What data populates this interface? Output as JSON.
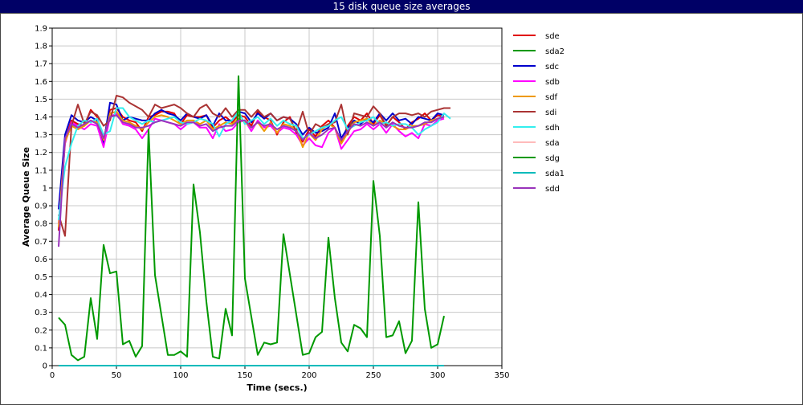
{
  "window": {
    "title": "15 disk queue size averages"
  },
  "chart_data": {
    "type": "line",
    "title": "15 disk queue size averages",
    "xlabel": "Time (secs.)",
    "ylabel": "Average Queue Size",
    "xlim": [
      0,
      350
    ],
    "ylim": [
      0,
      1.9
    ],
    "x_ticks": [
      0,
      50,
      100,
      150,
      200,
      250,
      300,
      350
    ],
    "y_ticks": [
      0,
      0.1,
      0.2,
      0.3,
      0.4,
      0.5,
      0.6,
      0.7,
      0.8,
      0.9,
      1,
      1.1,
      1.2,
      1.3,
      1.4,
      1.5,
      1.6,
      1.7,
      1.8,
      1.9
    ],
    "x_tick_labels": [
      "0",
      "50",
      "100",
      "150",
      "200",
      "250",
      "300",
      "350"
    ],
    "y_tick_labels": [
      "0",
      "0.1",
      "0.2",
      "0.3",
      "0.4",
      "0.5",
      "0.6",
      "0.7",
      "0.8",
      "0.9",
      "1",
      "1.1",
      "1.2",
      "1.3",
      "1.4",
      "1.5",
      "1.6",
      "1.7",
      "1.8",
      "1.9"
    ],
    "grid": true,
    "legend_position": "right",
    "series": [
      {
        "name": "sde",
        "color": "#e00000",
        "x": [
          5,
          10,
          15,
          20,
          25,
          30,
          35,
          40,
          45,
          50,
          55,
          60,
          65,
          70,
          75,
          80,
          85,
          90,
          95,
          100,
          105,
          110,
          115,
          120,
          125,
          130,
          135,
          140,
          145,
          150,
          155,
          160,
          165,
          170,
          175,
          180,
          185,
          190,
          195,
          200,
          205,
          210,
          215,
          220,
          225,
          230,
          235,
          240,
          245,
          250,
          255,
          260,
          265,
          270,
          275,
          280,
          285,
          290,
          295,
          300,
          305
        ],
        "y": [
          0.76,
          1.27,
          1.38,
          1.36,
          1.35,
          1.44,
          1.4,
          1.27,
          1.44,
          1.45,
          1.4,
          1.38,
          1.37,
          1.32,
          1.4,
          1.41,
          1.43,
          1.43,
          1.42,
          1.36,
          1.41,
          1.4,
          1.4,
          1.41,
          1.34,
          1.38,
          1.4,
          1.37,
          1.41,
          1.4,
          1.35,
          1.43,
          1.4,
          1.38,
          1.3,
          1.37,
          1.4,
          1.31,
          1.26,
          1.33,
          1.29,
          1.35,
          1.38,
          1.34,
          1.26,
          1.35,
          1.4,
          1.38,
          1.42,
          1.36,
          1.41,
          1.35,
          1.4,
          1.37,
          1.33,
          1.37,
          1.39,
          1.42,
          1.38,
          1.41,
          1.4
        ]
      },
      {
        "name": "sda2",
        "color": "#009900",
        "x": [
          5,
          305
        ],
        "y": [
          0,
          0
        ]
      },
      {
        "name": "sdc",
        "color": "#0000cc",
        "x": [
          5,
          10,
          15,
          20,
          25,
          30,
          35,
          40,
          45,
          50,
          55,
          60,
          65,
          70,
          75,
          80,
          85,
          90,
          95,
          100,
          105,
          110,
          115,
          120,
          125,
          130,
          135,
          140,
          145,
          150,
          155,
          160,
          165,
          170,
          175,
          180,
          185,
          190,
          195,
          200,
          205,
          210,
          215,
          220,
          225,
          230,
          235,
          240,
          245,
          250,
          255,
          260,
          265,
          270,
          275,
          280,
          285,
          290,
          295,
          300,
          305
        ],
        "y": [
          0.88,
          1.3,
          1.41,
          1.38,
          1.37,
          1.4,
          1.38,
          1.25,
          1.48,
          1.47,
          1.38,
          1.4,
          1.39,
          1.38,
          1.38,
          1.42,
          1.44,
          1.42,
          1.41,
          1.38,
          1.42,
          1.4,
          1.39,
          1.41,
          1.35,
          1.42,
          1.38,
          1.38,
          1.43,
          1.42,
          1.37,
          1.42,
          1.39,
          1.42,
          1.38,
          1.4,
          1.39,
          1.36,
          1.3,
          1.34,
          1.31,
          1.32,
          1.34,
          1.42,
          1.28,
          1.34,
          1.38,
          1.36,
          1.39,
          1.37,
          1.42,
          1.38,
          1.42,
          1.38,
          1.39,
          1.36,
          1.4,
          1.39,
          1.38,
          1.42,
          1.41
        ]
      },
      {
        "name": "sdb",
        "color": "#ff00ff",
        "x": [
          5,
          10,
          15,
          20,
          25,
          30,
          35,
          40,
          45,
          50,
          55,
          60,
          65,
          70,
          75,
          80,
          85,
          90,
          95,
          100,
          105,
          110,
          115,
          120,
          125,
          130,
          135,
          140,
          145,
          150,
          155,
          160,
          165,
          170,
          175,
          180,
          185,
          190,
          195,
          200,
          205,
          210,
          215,
          220,
          225,
          230,
          235,
          240,
          245,
          250,
          255,
          260,
          265,
          270,
          275,
          280,
          285,
          290,
          295,
          300,
          305
        ],
        "y": [
          0.8,
          1.25,
          1.37,
          1.35,
          1.33,
          1.36,
          1.35,
          1.23,
          1.4,
          1.42,
          1.36,
          1.35,
          1.33,
          1.28,
          1.33,
          1.39,
          1.38,
          1.37,
          1.36,
          1.33,
          1.36,
          1.37,
          1.34,
          1.34,
          1.28,
          1.36,
          1.32,
          1.33,
          1.37,
          1.38,
          1.32,
          1.38,
          1.34,
          1.35,
          1.31,
          1.34,
          1.33,
          1.3,
          1.24,
          1.28,
          1.24,
          1.23,
          1.31,
          1.34,
          1.22,
          1.27,
          1.32,
          1.33,
          1.36,
          1.33,
          1.36,
          1.31,
          1.36,
          1.32,
          1.29,
          1.31,
          1.28,
          1.36,
          1.35,
          1.38,
          1.39
        ]
      },
      {
        "name": "sdf",
        "color": "#ee9900",
        "x": [
          5,
          10,
          15,
          20,
          25,
          30,
          35,
          40,
          45,
          50,
          55,
          60,
          65,
          70,
          75,
          80,
          85,
          90,
          95,
          100,
          105,
          110,
          115,
          120,
          125,
          130,
          135,
          140,
          145,
          150,
          155,
          160,
          165,
          170,
          175,
          180,
          185,
          190,
          195,
          200,
          205,
          210,
          215,
          220,
          225,
          230,
          235,
          240,
          245,
          250,
          255,
          260,
          265,
          270,
          275,
          280,
          285,
          290,
          295,
          300,
          305
        ],
        "y": [
          0.78,
          1.26,
          1.35,
          1.33,
          1.35,
          1.38,
          1.37,
          1.27,
          1.42,
          1.43,
          1.38,
          1.37,
          1.35,
          1.33,
          1.37,
          1.4,
          1.41,
          1.4,
          1.38,
          1.36,
          1.38,
          1.38,
          1.36,
          1.38,
          1.33,
          1.35,
          1.37,
          1.36,
          1.39,
          1.37,
          1.34,
          1.37,
          1.32,
          1.37,
          1.31,
          1.36,
          1.35,
          1.33,
          1.23,
          1.31,
          1.27,
          1.33,
          1.36,
          1.34,
          1.25,
          1.31,
          1.37,
          1.38,
          1.39,
          1.35,
          1.38,
          1.36,
          1.35,
          1.33,
          1.33,
          1.35,
          1.35,
          1.36,
          1.38,
          1.39,
          1.4
        ]
      },
      {
        "name": "sdi",
        "color": "#aa3333",
        "x": [
          5,
          10,
          15,
          20,
          25,
          30,
          35,
          40,
          45,
          50,
          55,
          60,
          65,
          70,
          75,
          80,
          85,
          90,
          95,
          100,
          105,
          110,
          115,
          120,
          125,
          130,
          135,
          140,
          145,
          150,
          155,
          160,
          165,
          170,
          175,
          180,
          185,
          190,
          195,
          200,
          205,
          210,
          215,
          220,
          225,
          230,
          235,
          240,
          245,
          250,
          255,
          260,
          265,
          270,
          275,
          280,
          285,
          290,
          295,
          300,
          305,
          310
        ],
        "y": [
          0.85,
          0.73,
          1.35,
          1.47,
          1.36,
          1.43,
          1.41,
          1.35,
          1.38,
          1.52,
          1.51,
          1.48,
          1.46,
          1.44,
          1.4,
          1.47,
          1.45,
          1.46,
          1.47,
          1.45,
          1.42,
          1.4,
          1.45,
          1.47,
          1.42,
          1.4,
          1.45,
          1.4,
          1.44,
          1.44,
          1.4,
          1.44,
          1.4,
          1.42,
          1.38,
          1.4,
          1.39,
          1.32,
          1.43,
          1.3,
          1.36,
          1.34,
          1.36,
          1.37,
          1.47,
          1.3,
          1.42,
          1.41,
          1.4,
          1.46,
          1.42,
          1.35,
          1.4,
          1.42,
          1.42,
          1.41,
          1.42,
          1.4,
          1.43,
          1.44,
          1.45,
          1.45
        ]
      },
      {
        "name": "sdh",
        "color": "#33eeee",
        "x": [
          5,
          10,
          15,
          20,
          25,
          30,
          35,
          40,
          45,
          50,
          55,
          60,
          65,
          70,
          75,
          80,
          85,
          90,
          95,
          100,
          105,
          110,
          115,
          120,
          125,
          130,
          135,
          140,
          145,
          150,
          155,
          160,
          165,
          170,
          175,
          180,
          185,
          190,
          195,
          200,
          205,
          210,
          215,
          220,
          225,
          230,
          235,
          240,
          245,
          250,
          255,
          260,
          265,
          270,
          275,
          280,
          285,
          290,
          295,
          300,
          305,
          310
        ],
        "y": [
          0.82,
          1.12,
          1.25,
          1.35,
          1.38,
          1.37,
          1.39,
          1.3,
          1.32,
          1.45,
          1.45,
          1.4,
          1.38,
          1.36,
          1.38,
          1.37,
          1.38,
          1.39,
          1.4,
          1.37,
          1.36,
          1.37,
          1.39,
          1.38,
          1.36,
          1.29,
          1.36,
          1.38,
          1.43,
          1.36,
          1.38,
          1.4,
          1.36,
          1.39,
          1.35,
          1.38,
          1.36,
          1.35,
          1.28,
          1.3,
          1.32,
          1.34,
          1.35,
          1.38,
          1.4,
          1.33,
          1.35,
          1.37,
          1.38,
          1.4,
          1.36,
          1.37,
          1.35,
          1.36,
          1.36,
          1.34,
          1.3,
          1.33,
          1.35,
          1.37,
          1.42,
          1.39
        ]
      },
      {
        "name": "sda",
        "color": "#ffbbbb",
        "x": [
          5,
          305
        ],
        "y": [
          0,
          0
        ]
      },
      {
        "name": "sdg",
        "color": "#009900",
        "x": [
          5,
          10,
          15,
          20,
          25,
          30,
          35,
          40,
          45,
          50,
          55,
          60,
          65,
          70,
          75,
          80,
          90,
          95,
          100,
          105,
          110,
          115,
          120,
          125,
          130,
          135,
          140,
          145,
          150,
          160,
          165,
          170,
          175,
          180,
          195,
          200,
          205,
          210,
          215,
          220,
          225,
          230,
          235,
          240,
          245,
          250,
          255,
          260,
          265,
          270,
          275,
          280,
          285,
          290,
          295,
          300,
          305
        ],
        "y": [
          0.27,
          0.23,
          0.06,
          0.03,
          0.05,
          0.38,
          0.15,
          0.68,
          0.52,
          0.53,
          0.12,
          0.14,
          0.05,
          0.11,
          1.33,
          0.51,
          0.06,
          0.06,
          0.08,
          0.05,
          1.02,
          0.75,
          0.36,
          0.05,
          0.04,
          0.32,
          0.17,
          1.63,
          0.49,
          0.06,
          0.13,
          0.12,
          0.13,
          0.74,
          0.06,
          0.07,
          0.16,
          0.19,
          0.72,
          0.38,
          0.13,
          0.08,
          0.23,
          0.21,
          0.16,
          1.04,
          0.73,
          0.16,
          0.17,
          0.25,
          0.07,
          0.14,
          0.92,
          0.32,
          0.1,
          0.12,
          0.28
        ]
      },
      {
        "name": "sda1",
        "color": "#00bbbb",
        "x": [
          5,
          305
        ],
        "y": [
          0,
          0
        ]
      },
      {
        "name": "sdd",
        "color": "#9933bb",
        "x": [
          5,
          10,
          15,
          20,
          25,
          30,
          35,
          40,
          45,
          50,
          55,
          60,
          65,
          70,
          75,
          80,
          85,
          90,
          95,
          100,
          105,
          110,
          115,
          120,
          125,
          130,
          135,
          140,
          145,
          150,
          155,
          160,
          165,
          170,
          175,
          180,
          185,
          190,
          195,
          200,
          205,
          210,
          215,
          220,
          225,
          230,
          235,
          240,
          245,
          250,
          255,
          260,
          265,
          270,
          275,
          280,
          285,
          290,
          295,
          300,
          305
        ],
        "y": [
          0.67,
          1.28,
          1.36,
          1.34,
          1.36,
          1.38,
          1.36,
          1.28,
          1.4,
          1.41,
          1.37,
          1.36,
          1.34,
          1.34,
          1.35,
          1.37,
          1.38,
          1.37,
          1.36,
          1.35,
          1.37,
          1.37,
          1.35,
          1.36,
          1.32,
          1.34,
          1.35,
          1.35,
          1.38,
          1.38,
          1.34,
          1.37,
          1.35,
          1.36,
          1.33,
          1.35,
          1.34,
          1.32,
          1.27,
          1.31,
          1.28,
          1.3,
          1.33,
          1.34,
          1.27,
          1.32,
          1.36,
          1.35,
          1.37,
          1.35,
          1.37,
          1.34,
          1.37,
          1.35,
          1.34,
          1.34,
          1.35,
          1.37,
          1.37,
          1.39,
          1.4
        ]
      }
    ]
  }
}
